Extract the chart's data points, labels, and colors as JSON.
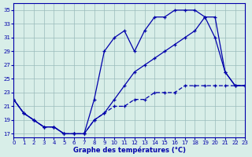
{
  "xlabel": "Graphe des températures (°C)",
  "background_color": "#d8eee8",
  "line_color": "#0000aa",
  "grid_color": "#99bbbb",
  "xlim": [
    0,
    23
  ],
  "ylim": [
    16.5,
    36
  ],
  "yticks": [
    17,
    19,
    21,
    23,
    25,
    27,
    29,
    31,
    33,
    35
  ],
  "xticks": [
    0,
    1,
    2,
    3,
    4,
    5,
    6,
    7,
    8,
    9,
    10,
    11,
    12,
    13,
    14,
    15,
    16,
    17,
    18,
    19,
    20,
    21,
    22,
    23
  ],
  "curve1_x": [
    0,
    1,
    2,
    3,
    4,
    5,
    6,
    7,
    8,
    9,
    10,
    11,
    12,
    13,
    14,
    15,
    16,
    17,
    18,
    19,
    20,
    21,
    22,
    23
  ],
  "curve1_y": [
    22,
    20,
    19,
    18,
    18,
    17,
    17,
    17,
    22,
    29,
    31,
    32,
    29,
    32,
    34,
    34,
    35,
    35,
    35,
    34,
    31,
    26,
    24,
    24
  ],
  "curve2_x": [
    0,
    1,
    2,
    3,
    4,
    5,
    6,
    7,
    8,
    9,
    10,
    11,
    12,
    13,
    14,
    15,
    16,
    17,
    18,
    19,
    20,
    21,
    22,
    23
  ],
  "curve2_y": [
    22,
    20,
    19,
    18,
    18,
    17,
    17,
    17,
    19,
    20,
    22,
    24,
    26,
    27,
    28,
    29,
    30,
    31,
    32,
    34,
    34,
    26,
    24,
    24
  ],
  "curve3_x": [
    0,
    1,
    2,
    3,
    4,
    5,
    6,
    7,
    8,
    9,
    10,
    11,
    12,
    13,
    14,
    15,
    16,
    17,
    18,
    19,
    20,
    21,
    22,
    23
  ],
  "curve3_y": [
    22,
    20,
    19,
    18,
    18,
    17,
    17,
    17,
    19,
    20,
    21,
    21,
    22,
    22,
    23,
    23,
    23,
    24,
    24,
    24,
    24,
    24,
    24,
    24
  ]
}
